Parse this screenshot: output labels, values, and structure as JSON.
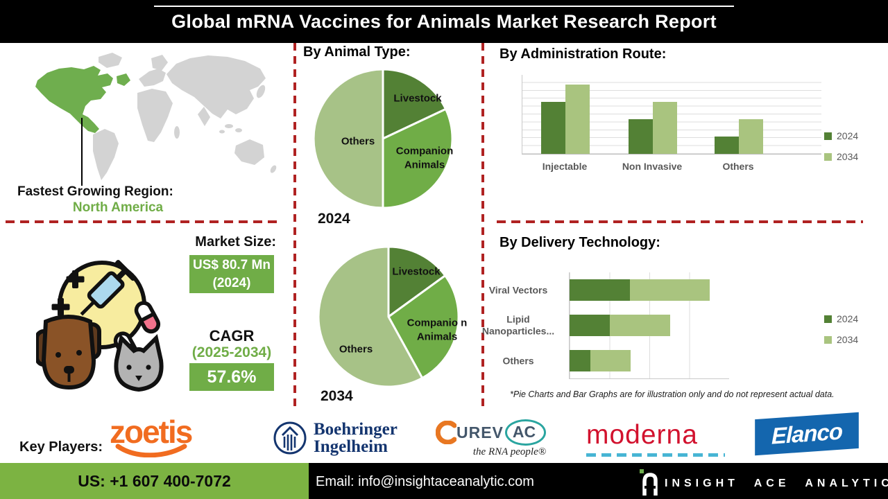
{
  "header": {
    "title": "Global mRNA Vaccines for Animals Market Research Report"
  },
  "region": {
    "label": "Fastest Growing Region:",
    "value": "North America"
  },
  "market": {
    "heading": "Market Size:",
    "size_line1": "US$ 80.7 Mn",
    "size_line2": "(2024)",
    "cagr_label": "CAGR",
    "cagr_period": "(2025-2034)",
    "cagr_value": "57.6%"
  },
  "sections": {
    "animal_type_heading": "By Animal Type:",
    "admin_route_heading": "By  Administration Route:",
    "delivery_heading": "By Delivery Technology:",
    "disclaimer": "*Pie Charts and Bar Graphs are for illustration only and do not represent actual data."
  },
  "key_players": {
    "label": "Key Players:",
    "companies": [
      "Zoetis",
      "Boehringer Ingelheim",
      "CureVac",
      "Moderna",
      "Elanco"
    ]
  },
  "logos": {
    "zoetis": "zoetis",
    "boehringer_line1": "Boehringer",
    "boehringer_line2": "Ingelheim",
    "curevac_c": "C",
    "curevac_urev": "UREV",
    "curevac_ac": "AC",
    "curevac_tagline": "the RNA people®",
    "moderna": "moderna",
    "elanco": "Elanco"
  },
  "footer": {
    "phone": "US: +1 607 400-7072",
    "email": "Email: info@insightaceanalytic.com",
    "brand": "INSIGHT ACE ANALYTIC"
  },
  "colors": {
    "dark_green_2024": "#538135",
    "light_green_2034": "#A9C47F",
    "mid_green": "#70AD47",
    "others_slice": "#A7C287",
    "accent_red": "#B02222",
    "footer_green": "#7CB342",
    "map_green": "#6FAE4E",
    "map_gray": "#D3D3D3"
  },
  "chart_data": [
    {
      "type": "pie",
      "title": "By Animal Type — 2024",
      "year": "2024",
      "labels": [
        "Livestock",
        "Companion Animals",
        "Others"
      ],
      "values": [
        18,
        32,
        50
      ],
      "colors": [
        "#538135",
        "#70AD47",
        "#A7C287"
      ],
      "legend_position": "none"
    },
    {
      "type": "pie",
      "title": "By Animal Type — 2034",
      "year": "2034",
      "labels": [
        "Livestock",
        "Companio n Animals",
        "Others"
      ],
      "values": [
        15,
        27,
        58
      ],
      "colors": [
        "#538135",
        "#70AD47",
        "#A7C287"
      ],
      "legend_position": "none"
    },
    {
      "type": "bar",
      "title": "By  Administration Route:",
      "categories": [
        "Injectable",
        "Non Invasive",
        "Others"
      ],
      "series": [
        {
          "name": "2024",
          "color": "#538135",
          "values": [
            66,
            44,
            22
          ]
        },
        {
          "name": "2034",
          "color": "#A9C47F",
          "values": [
            88,
            66,
            44
          ]
        }
      ],
      "ylim": [
        0,
        100
      ],
      "grid": true,
      "legend_position": "right",
      "xlabel": "",
      "ylabel": ""
    },
    {
      "type": "bar",
      "orientation": "horizontal",
      "stacked": true,
      "title": "By Delivery Technology:",
      "categories": [
        "Viral Vectors",
        "Lipid Nanoparticles...",
        "Others"
      ],
      "series": [
        {
          "name": "2024",
          "color": "#538135",
          "values": [
            38,
            25,
            13
          ]
        },
        {
          "name": "2034",
          "color": "#A9C47F",
          "values": [
            50,
            38,
            25
          ]
        }
      ],
      "xlim": [
        0,
        100
      ],
      "grid": true,
      "legend_position": "right",
      "xlabel": "",
      "ylabel": ""
    }
  ]
}
